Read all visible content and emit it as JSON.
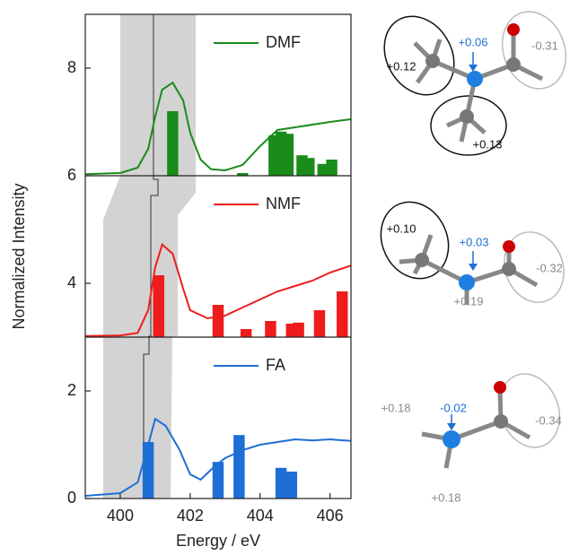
{
  "chart_data": {
    "type": "line",
    "x_label": "Energy / eV",
    "y_label": "Normalized Intensity",
    "xlim": [
      399,
      406.6
    ],
    "ylim": [
      0,
      9
    ],
    "xticks": [
      400,
      402,
      404,
      406
    ],
    "yticks": [
      0,
      2,
      4,
      6,
      8
    ],
    "series": [
      {
        "name": "DMF",
        "color": "#1a8c1a",
        "base": 6,
        "x": [
          399,
          400,
          400.5,
          400.8,
          401,
          401.2,
          401.5,
          401.8,
          402,
          402.3,
          402.6,
          403,
          403.5,
          404,
          404.5,
          405,
          405.5,
          406,
          406.6
        ],
        "values": [
          6.03,
          6.05,
          6.15,
          6.5,
          7.1,
          7.6,
          7.73,
          7.4,
          6.8,
          6.3,
          6.12,
          6.1,
          6.2,
          6.55,
          6.85,
          6.9,
          6.95,
          7.0,
          7.05
        ],
        "bars": {
          "x": [
            401.5,
            403.5,
            404.4,
            404.6,
            404.8,
            405.2,
            405.4,
            405.8,
            406.05
          ],
          "values": [
            7.2,
            6.05,
            6.75,
            6.82,
            6.78,
            6.38,
            6.33,
            6.22,
            6.3
          ]
        }
      },
      {
        "name": "NMF",
        "color": "#ee1c1c",
        "base": 3,
        "x": [
          399,
          400,
          400.5,
          400.8,
          401,
          401.2,
          401.5,
          401.8,
          402,
          402.5,
          403,
          403.5,
          404,
          404.5,
          405,
          405.5,
          406,
          406.6
        ],
        "values": [
          3.02,
          3.03,
          3.08,
          3.5,
          4.3,
          4.72,
          4.55,
          3.9,
          3.5,
          3.35,
          3.4,
          3.55,
          3.7,
          3.85,
          3.95,
          4.05,
          4.2,
          4.33
        ],
        "bars": {
          "x": [
            401.1,
            402.8,
            403.6,
            404.3,
            404.9,
            405.1,
            405.7,
            406.35
          ],
          "values": [
            4.15,
            3.6,
            3.15,
            3.3,
            3.25,
            3.27,
            3.5,
            3.85
          ]
        }
      },
      {
        "name": "FA",
        "color": "#1f6ed6",
        "base": 0,
        "x": [
          399,
          400,
          400.5,
          400.8,
          401,
          401.3,
          401.7,
          402,
          402.3,
          402.7,
          403,
          403.5,
          404,
          404.5,
          405,
          405.5,
          406,
          406.6
        ],
        "values": [
          0.05,
          0.1,
          0.3,
          1.0,
          1.48,
          1.35,
          0.9,
          0.45,
          0.35,
          0.6,
          0.75,
          0.9,
          1.0,
          1.05,
          1.1,
          1.08,
          1.1,
          1.07
        ],
        "bars": {
          "x": [
            400.8,
            402.8,
            403.4,
            404.6,
            404.9
          ],
          "values": [
            1.05,
            0.68,
            1.18,
            0.57,
            0.5
          ]
        }
      }
    ]
  },
  "molecules": [
    {
      "labels": [
        "+0.12",
        "+0.06",
        "-0.31",
        "+0.13"
      ]
    },
    {
      "labels": [
        "+0.10",
        "+0.03",
        "-0.32",
        "+0.19"
      ]
    },
    {
      "labels": [
        "+0.18",
        "-0.02",
        "-0.34",
        "+0.18"
      ]
    }
  ]
}
